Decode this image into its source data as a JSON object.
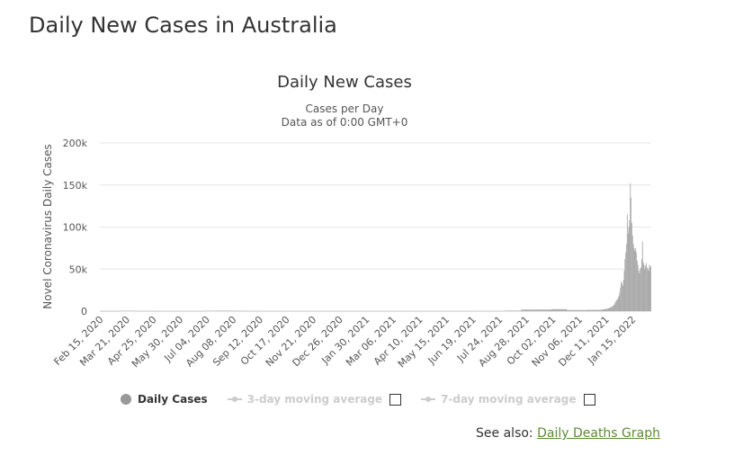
{
  "page": {
    "heading": "Daily New Cases in Australia"
  },
  "legend": {
    "daily": "Daily Cases",
    "ma3": "3-day moving average",
    "ma7": "7-day moving average"
  },
  "see_also": {
    "prefix": "See also:",
    "link": "Daily Deaths Graph"
  },
  "colors": {
    "bars": "#a6a6a6",
    "grid": "#e6e6e6",
    "link": "#5b8c33"
  },
  "chart_data": {
    "type": "bar",
    "title": "Daily New Cases",
    "subtitle_lines": [
      "Cases per Day",
      "Data as of 0:00 GMT+0"
    ],
    "ylabel": "Novel Coronavirus Daily Cases",
    "ylim": [
      0,
      200000
    ],
    "y_ticks": [
      0,
      50000,
      100000,
      150000,
      200000
    ],
    "y_tick_labels": [
      "0",
      "50k",
      "100k",
      "150k",
      "200k"
    ],
    "x_tick_labels": [
      "Feb 15, 2020",
      "Mar 21, 2020",
      "Apr 25, 2020",
      "May 30, 2020",
      "Jul 04, 2020",
      "Aug 08, 2020",
      "Sep 12, 2020",
      "Oct 17, 2020",
      "Nov 21, 2020",
      "Dec 26, 2020",
      "Jan 30, 2021",
      "Mar 06, 2021",
      "Apr 10, 2021",
      "May 15, 2021",
      "Jun 19, 2021",
      "Jul 24, 2021",
      "Aug 28, 2021",
      "Oct 02, 2021",
      "Nov 06, 2021",
      "Dec 11, 2021",
      "Jan 15, 2022"
    ],
    "x_range": [
      "2020-02-15",
      "2022-02-08"
    ],
    "series": [
      {
        "values_by_period": [
          {
            "start": "2020-02-15",
            "end": "2020-03-14",
            "value": 50
          },
          {
            "start": "2020-03-15",
            "end": "2020-03-31",
            "value": 300
          },
          {
            "start": "2020-04-01",
            "end": "2020-04-30",
            "value": 60
          },
          {
            "start": "2020-05-01",
            "end": "2020-06-30",
            "value": 15
          },
          {
            "start": "2020-07-01",
            "end": "2020-07-14",
            "value": 200
          },
          {
            "start": "2020-07-15",
            "end": "2020-08-15",
            "value": 450
          },
          {
            "start": "2020-08-16",
            "end": "2020-09-15",
            "value": 120
          },
          {
            "start": "2020-09-16",
            "end": "2021-06-20",
            "value": 10
          },
          {
            "start": "2021-06-21",
            "end": "2021-07-31",
            "value": 150
          },
          {
            "start": "2021-08-01",
            "end": "2021-08-21",
            "value": 600
          },
          {
            "start": "2021-08-22",
            "end": "2021-09-30",
            "value": 1800
          },
          {
            "start": "2021-10-01",
            "end": "2021-10-20",
            "value": 2300
          },
          {
            "start": "2021-10-21",
            "end": "2021-11-15",
            "value": 1300
          },
          {
            "start": "2021-11-16",
            "end": "2021-12-04",
            "value": 1500
          }
        ],
        "daily": [
          {
            "date": "2021-12-05",
            "value": 1800
          },
          {
            "date": "2021-12-06",
            "value": 1900
          },
          {
            "date": "2021-12-07",
            "value": 2000
          },
          {
            "date": "2021-12-08",
            "value": 2100
          },
          {
            "date": "2021-12-09",
            "value": 2200
          },
          {
            "date": "2021-12-10",
            "value": 2400
          },
          {
            "date": "2021-12-11",
            "value": 2600
          },
          {
            "date": "2021-12-12",
            "value": 2800
          },
          {
            "date": "2021-12-13",
            "value": 3000
          },
          {
            "date": "2021-12-14",
            "value": 3200
          },
          {
            "date": "2021-12-15",
            "value": 3600
          },
          {
            "date": "2021-12-16",
            "value": 4000
          },
          {
            "date": "2021-12-17",
            "value": 4500
          },
          {
            "date": "2021-12-18",
            "value": 5000
          },
          {
            "date": "2021-12-19",
            "value": 5500
          },
          {
            "date": "2021-12-20",
            "value": 6000
          },
          {
            "date": "2021-12-21",
            "value": 7000
          },
          {
            "date": "2021-12-22",
            "value": 8000
          },
          {
            "date": "2021-12-23",
            "value": 10000
          },
          {
            "date": "2021-12-24",
            "value": 12000
          },
          {
            "date": "2021-12-25",
            "value": 13000
          },
          {
            "date": "2021-12-26",
            "value": 14000
          },
          {
            "date": "2021-12-27",
            "value": 16000
          },
          {
            "date": "2021-12-28",
            "value": 18000
          },
          {
            "date": "2021-12-29",
            "value": 22000
          },
          {
            "date": "2021-12-30",
            "value": 28000
          },
          {
            "date": "2021-12-31",
            "value": 35000
          },
          {
            "date": "2022-01-01",
            "value": 33000
          },
          {
            "date": "2022-01-02",
            "value": 30000
          },
          {
            "date": "2022-01-03",
            "value": 37000
          },
          {
            "date": "2022-01-04",
            "value": 48000
          },
          {
            "date": "2022-01-05",
            "value": 62000
          },
          {
            "date": "2022-01-06",
            "value": 70000
          },
          {
            "date": "2022-01-07",
            "value": 80000
          },
          {
            "date": "2022-01-08",
            "value": 115000
          },
          {
            "date": "2022-01-09",
            "value": 92000
          },
          {
            "date": "2022-01-10",
            "value": 100000
          },
          {
            "date": "2022-01-11",
            "value": 108000
          },
          {
            "date": "2022-01-12",
            "value": 152000
          },
          {
            "date": "2022-01-13",
            "value": 135000
          },
          {
            "date": "2022-01-14",
            "value": 105000
          },
          {
            "date": "2022-01-15",
            "value": 90000
          },
          {
            "date": "2022-01-16",
            "value": 80000
          },
          {
            "date": "2022-01-17",
            "value": 75000
          },
          {
            "date": "2022-01-18",
            "value": 72000
          },
          {
            "date": "2022-01-19",
            "value": 75000
          },
          {
            "date": "2022-01-20",
            "value": 70000
          },
          {
            "date": "2022-01-21",
            "value": 60000
          },
          {
            "date": "2022-01-22",
            "value": 55000
          },
          {
            "date": "2022-01-23",
            "value": 48000
          },
          {
            "date": "2022-01-24",
            "value": 45000
          },
          {
            "date": "2022-01-25",
            "value": 50000
          },
          {
            "date": "2022-01-26",
            "value": 52000
          },
          {
            "date": "2022-01-27",
            "value": 62000
          },
          {
            "date": "2022-01-28",
            "value": 83000
          },
          {
            "date": "2022-01-29",
            "value": 58000
          },
          {
            "date": "2022-01-30",
            "value": 55000
          },
          {
            "date": "2022-01-31",
            "value": 50000
          },
          {
            "date": "2022-02-01",
            "value": 54000
          },
          {
            "date": "2022-02-02",
            "value": 57000
          },
          {
            "date": "2022-02-03",
            "value": 52000
          },
          {
            "date": "2022-02-04",
            "value": 50000
          },
          {
            "date": "2022-02-05",
            "value": 48000
          },
          {
            "date": "2022-02-06",
            "value": 55000
          },
          {
            "date": "2022-02-07",
            "value": 52000
          },
          {
            "date": "2022-02-08",
            "value": 54000
          }
        ]
      }
    ]
  }
}
